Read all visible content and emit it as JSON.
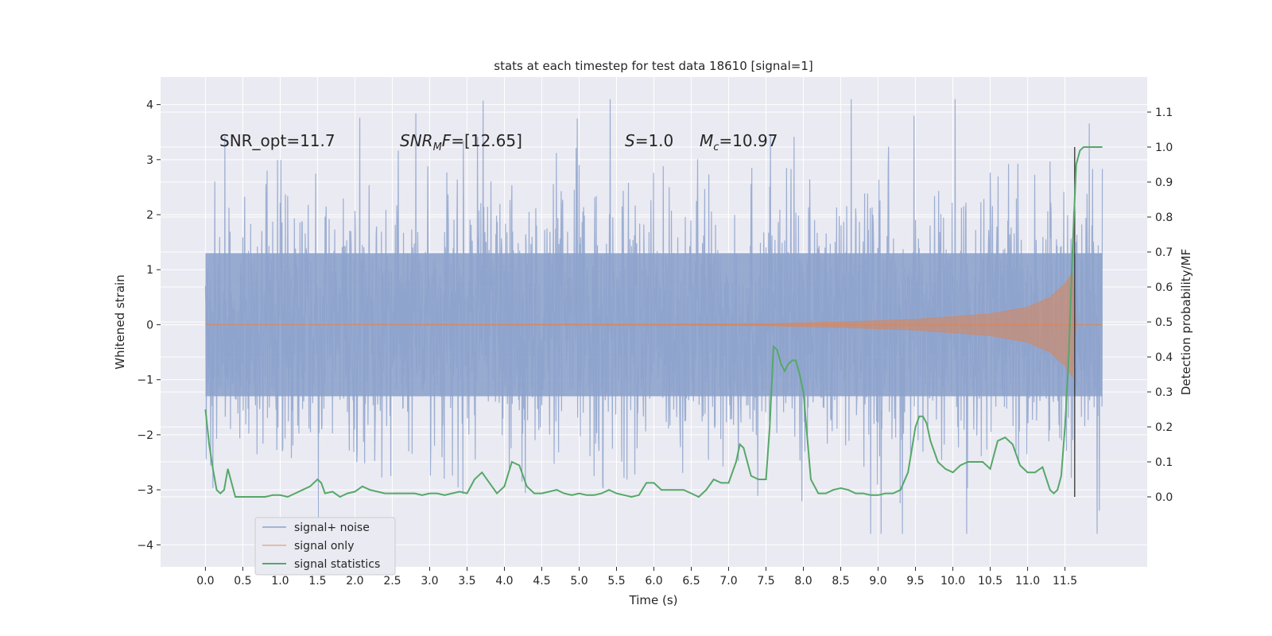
{
  "chart_data": {
    "type": "line",
    "title": "stats at each timestep for test data 18610 [signal=1]",
    "xlabel": "Time (s)",
    "ylabel": "Whitened strain",
    "ylabel_right": "Detection probability/MF",
    "xlim": [
      -0.6,
      12.6
    ],
    "ylim": [
      -4.4,
      4.5
    ],
    "ylim_right": [
      -0.2,
      1.2
    ],
    "x_ticks": [
      "0.0",
      "0.5",
      "1.0",
      "1.5",
      "2.0",
      "2.5",
      "3.0",
      "3.5",
      "4.0",
      "4.5",
      "5.0",
      "5.5",
      "6.0",
      "6.5",
      "7.0",
      "7.5",
      "8.0",
      "8.5",
      "9.0",
      "9.5",
      "10.0",
      "10.5",
      "11.0",
      "11.5"
    ],
    "y_ticks": [
      "4",
      "3",
      "2",
      "1",
      "0",
      "−1",
      "−2",
      "−3",
      "−4"
    ],
    "y_right_ticks": [
      "1.1",
      "1.0",
      "0.9",
      "0.8",
      "0.7",
      "0.6",
      "0.5",
      "0.4",
      "0.3",
      "0.2",
      "0.1",
      "0.0"
    ],
    "grid": true,
    "legend_position": "lower-left",
    "annotations": [
      {
        "text": "SNR_opt=11.7"
      },
      {
        "text": "SNRMF=[12.65]"
      },
      {
        "text": "S=1.0"
      },
      {
        "text": "Mc=10.97"
      }
    ],
    "series": [
      {
        "name": "signal+ noise",
        "color": "#8ea3cc",
        "description_range": [
          0.0,
          12.0
        ],
        "typical_envelope": [
          -1.3,
          1.3
        ],
        "peak_range": [
          -3.8,
          4.1
        ]
      },
      {
        "name": "signal only",
        "color": "#dd8452",
        "x": [
          0,
          6,
          7.5,
          8.5,
          9.5,
          10.5,
          11.0,
          11.3,
          11.5,
          11.6,
          11.65,
          12.0
        ],
        "amplitude": [
          0.0,
          0.01,
          0.02,
          0.05,
          0.1,
          0.2,
          0.32,
          0.5,
          0.75,
          0.95,
          0.0,
          0.0
        ]
      },
      {
        "name": "signal statistics",
        "color": "#55a868",
        "axis": "right",
        "x": [
          0.0,
          0.05,
          0.1,
          0.15,
          0.2,
          0.25,
          0.3,
          0.35,
          0.4,
          0.5,
          0.6,
          0.7,
          0.8,
          0.9,
          1.0,
          1.1,
          1.2,
          1.3,
          1.4,
          1.5,
          1.55,
          1.6,
          1.7,
          1.8,
          1.9,
          2.0,
          2.1,
          2.2,
          2.3,
          2.4,
          2.5,
          2.6,
          2.7,
          2.8,
          2.9,
          3.0,
          3.1,
          3.2,
          3.3,
          3.4,
          3.5,
          3.6,
          3.7,
          3.8,
          3.9,
          4.0,
          4.1,
          4.2,
          4.3,
          4.4,
          4.5,
          4.6,
          4.7,
          4.8,
          4.9,
          5.0,
          5.1,
          5.2,
          5.3,
          5.4,
          5.5,
          5.6,
          5.7,
          5.8,
          5.9,
          6.0,
          6.1,
          6.2,
          6.3,
          6.4,
          6.5,
          6.6,
          6.7,
          6.8,
          6.9,
          7.0,
          7.1,
          7.15,
          7.2,
          7.3,
          7.4,
          7.5,
          7.55,
          7.6,
          7.65,
          7.7,
          7.75,
          7.8,
          7.85,
          7.9,
          7.95,
          8.0,
          8.1,
          8.2,
          8.3,
          8.4,
          8.5,
          8.6,
          8.7,
          8.8,
          8.9,
          9.0,
          9.1,
          9.2,
          9.3,
          9.4,
          9.5,
          9.55,
          9.6,
          9.65,
          9.7,
          9.8,
          9.9,
          10.0,
          10.1,
          10.2,
          10.3,
          10.4,
          10.5,
          10.6,
          10.7,
          10.8,
          10.9,
          11.0,
          11.1,
          11.2,
          11.3,
          11.35,
          11.4,
          11.45,
          11.5,
          11.55,
          11.6,
          11.65,
          11.7,
          11.75,
          11.8,
          11.85,
          11.9,
          11.95,
          12.0
        ],
        "values": [
          0.25,
          0.15,
          0.08,
          0.02,
          0.01,
          0.02,
          0.08,
          0.04,
          0.0,
          0.0,
          0.0,
          0.0,
          0.0,
          0.005,
          0.005,
          0.0,
          0.01,
          0.02,
          0.03,
          0.05,
          0.04,
          0.01,
          0.015,
          0.0,
          0.01,
          0.015,
          0.03,
          0.02,
          0.015,
          0.01,
          0.01,
          0.01,
          0.01,
          0.01,
          0.005,
          0.01,
          0.01,
          0.005,
          0.01,
          0.015,
          0.01,
          0.05,
          0.07,
          0.04,
          0.01,
          0.03,
          0.1,
          0.09,
          0.03,
          0.01,
          0.01,
          0.015,
          0.02,
          0.01,
          0.005,
          0.01,
          0.005,
          0.005,
          0.01,
          0.02,
          0.01,
          0.005,
          0.0,
          0.005,
          0.04,
          0.04,
          0.02,
          0.02,
          0.02,
          0.02,
          0.01,
          0.0,
          0.02,
          0.05,
          0.04,
          0.04,
          0.1,
          0.15,
          0.14,
          0.06,
          0.05,
          0.05,
          0.2,
          0.43,
          0.42,
          0.38,
          0.36,
          0.38,
          0.39,
          0.39,
          0.35,
          0.3,
          0.05,
          0.01,
          0.01,
          0.02,
          0.025,
          0.02,
          0.01,
          0.01,
          0.005,
          0.005,
          0.01,
          0.01,
          0.02,
          0.07,
          0.2,
          0.23,
          0.23,
          0.21,
          0.16,
          0.1,
          0.08,
          0.07,
          0.09,
          0.1,
          0.1,
          0.1,
          0.08,
          0.16,
          0.17,
          0.15,
          0.09,
          0.07,
          0.07,
          0.085,
          0.02,
          0.01,
          0.02,
          0.06,
          0.2,
          0.4,
          0.7,
          0.95,
          0.99,
          1.0,
          1.0,
          1.0,
          1.0,
          1.0,
          1.0
        ]
      }
    ]
  }
}
